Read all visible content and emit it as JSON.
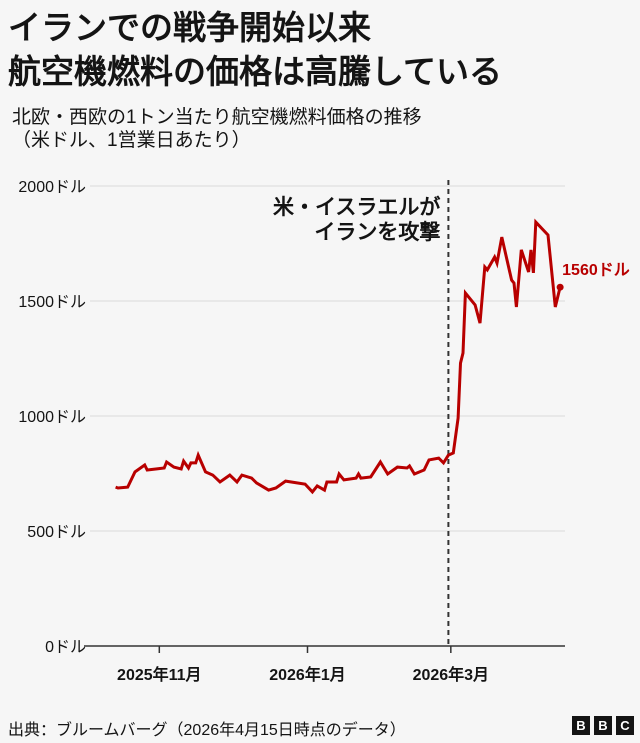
{
  "title_lines": [
    "イランでの戦争開始以来",
    "航空機燃料の価格は高騰している"
  ],
  "subtitle_lines": [
    "北欧・西欧の1トン当たり航空機燃料価格の推移",
    "（米ドル、1営業日あたり）"
  ],
  "source": "出典：ブルームバーグ（2026年4月15日時点のデータ）",
  "logo": "BBC",
  "colors": {
    "line": "#b80000",
    "text": "#141414",
    "grid": "#e4e4e4",
    "background": "#f6f6f6"
  },
  "chart_data": {
    "type": "line",
    "title": "",
    "xlabel": "",
    "ylabel": "",
    "xlim": [
      "2025-10-01",
      "2026-04-17"
    ],
    "ylim": [
      0,
      2000
    ],
    "grid": true,
    "y_ticks": [
      {
        "value": 0,
        "label": "0ドル"
      },
      {
        "value": 500,
        "label": "500ドル"
      },
      {
        "value": 1000,
        "label": "1000ドル"
      },
      {
        "value": 1500,
        "label": "1500ドル"
      },
      {
        "value": 2000,
        "label": "2000ドル"
      }
    ],
    "x_ticks": [
      {
        "date": "2025-11-01",
        "label": "2025年11月"
      },
      {
        "date": "2026-01-01",
        "label": "2026年1月"
      },
      {
        "date": "2026-03-01",
        "label": "2026年3月"
      }
    ],
    "annotation": {
      "date": "2026-02-28",
      "lines": [
        "米・イスラエルが",
        "イランを攻撃"
      ]
    },
    "end_label": {
      "date": "2026-04-15",
      "value": 1560,
      "label": "1560ドル"
    },
    "series": [
      {
        "x": [
          "2025-10-14",
          "2025-10-15",
          "2025-10-19",
          "2025-10-22",
          "2025-10-26",
          "2025-10-27",
          "2025-10-31",
          "2025-11-03",
          "2025-11-04",
          "2025-11-07",
          "2025-11-10",
          "2025-11-11",
          "2025-11-13",
          "2025-11-14",
          "2025-11-16",
          "2025-11-17",
          "2025-11-20",
          "2025-11-23",
          "2025-11-26",
          "2025-11-30",
          "2025-12-03",
          "2025-12-05",
          "2025-12-09",
          "2025-12-11",
          "2025-12-16",
          "2025-12-19",
          "2025-12-23",
          "2025-12-31",
          "2026-01-03",
          "2026-01-05",
          "2026-01-08",
          "2026-01-09",
          "2026-01-13",
          "2026-01-14",
          "2026-01-16",
          "2026-01-21",
          "2026-01-22",
          "2026-01-23",
          "2026-01-27",
          "2026-01-31",
          "2026-02-03",
          "2026-02-07",
          "2026-02-11",
          "2026-02-12",
          "2026-02-14",
          "2026-02-18",
          "2026-02-20",
          "2026-02-24",
          "2026-02-26",
          "2026-02-28",
          "2026-03-02",
          "2026-03-04",
          "2026-03-05",
          "2026-03-06",
          "2026-03-07",
          "2026-03-11",
          "2026-03-13",
          "2026-03-15",
          "2026-03-16",
          "2026-03-19",
          "2026-03-20",
          "2026-03-22",
          "2026-03-26",
          "2026-03-27",
          "2026-03-28",
          "2026-03-30",
          "2026-04-02",
          "2026-04-03",
          "2026-04-04",
          "2026-04-05",
          "2026-04-10",
          "2026-04-13",
          "2026-04-15"
        ],
        "values": [
          691,
          687,
          691,
          757,
          787,
          765,
          770,
          774,
          800,
          778,
          770,
          804,
          774,
          796,
          796,
          830,
          757,
          743,
          713,
          743,
          713,
          743,
          730,
          709,
          678,
          687,
          717,
          704,
          670,
          696,
          678,
          713,
          713,
          748,
          722,
          730,
          748,
          730,
          735,
          800,
          748,
          778,
          774,
          783,
          748,
          765,
          809,
          817,
          796,
          830,
          839,
          991,
          1230,
          1274,
          1535,
          1483,
          1404,
          1648,
          1635,
          1691,
          1665,
          1778,
          1591,
          1578,
          1474,
          1722,
          1626,
          1722,
          1622,
          1843,
          1787,
          1474,
          1560
        ]
      }
    ]
  }
}
